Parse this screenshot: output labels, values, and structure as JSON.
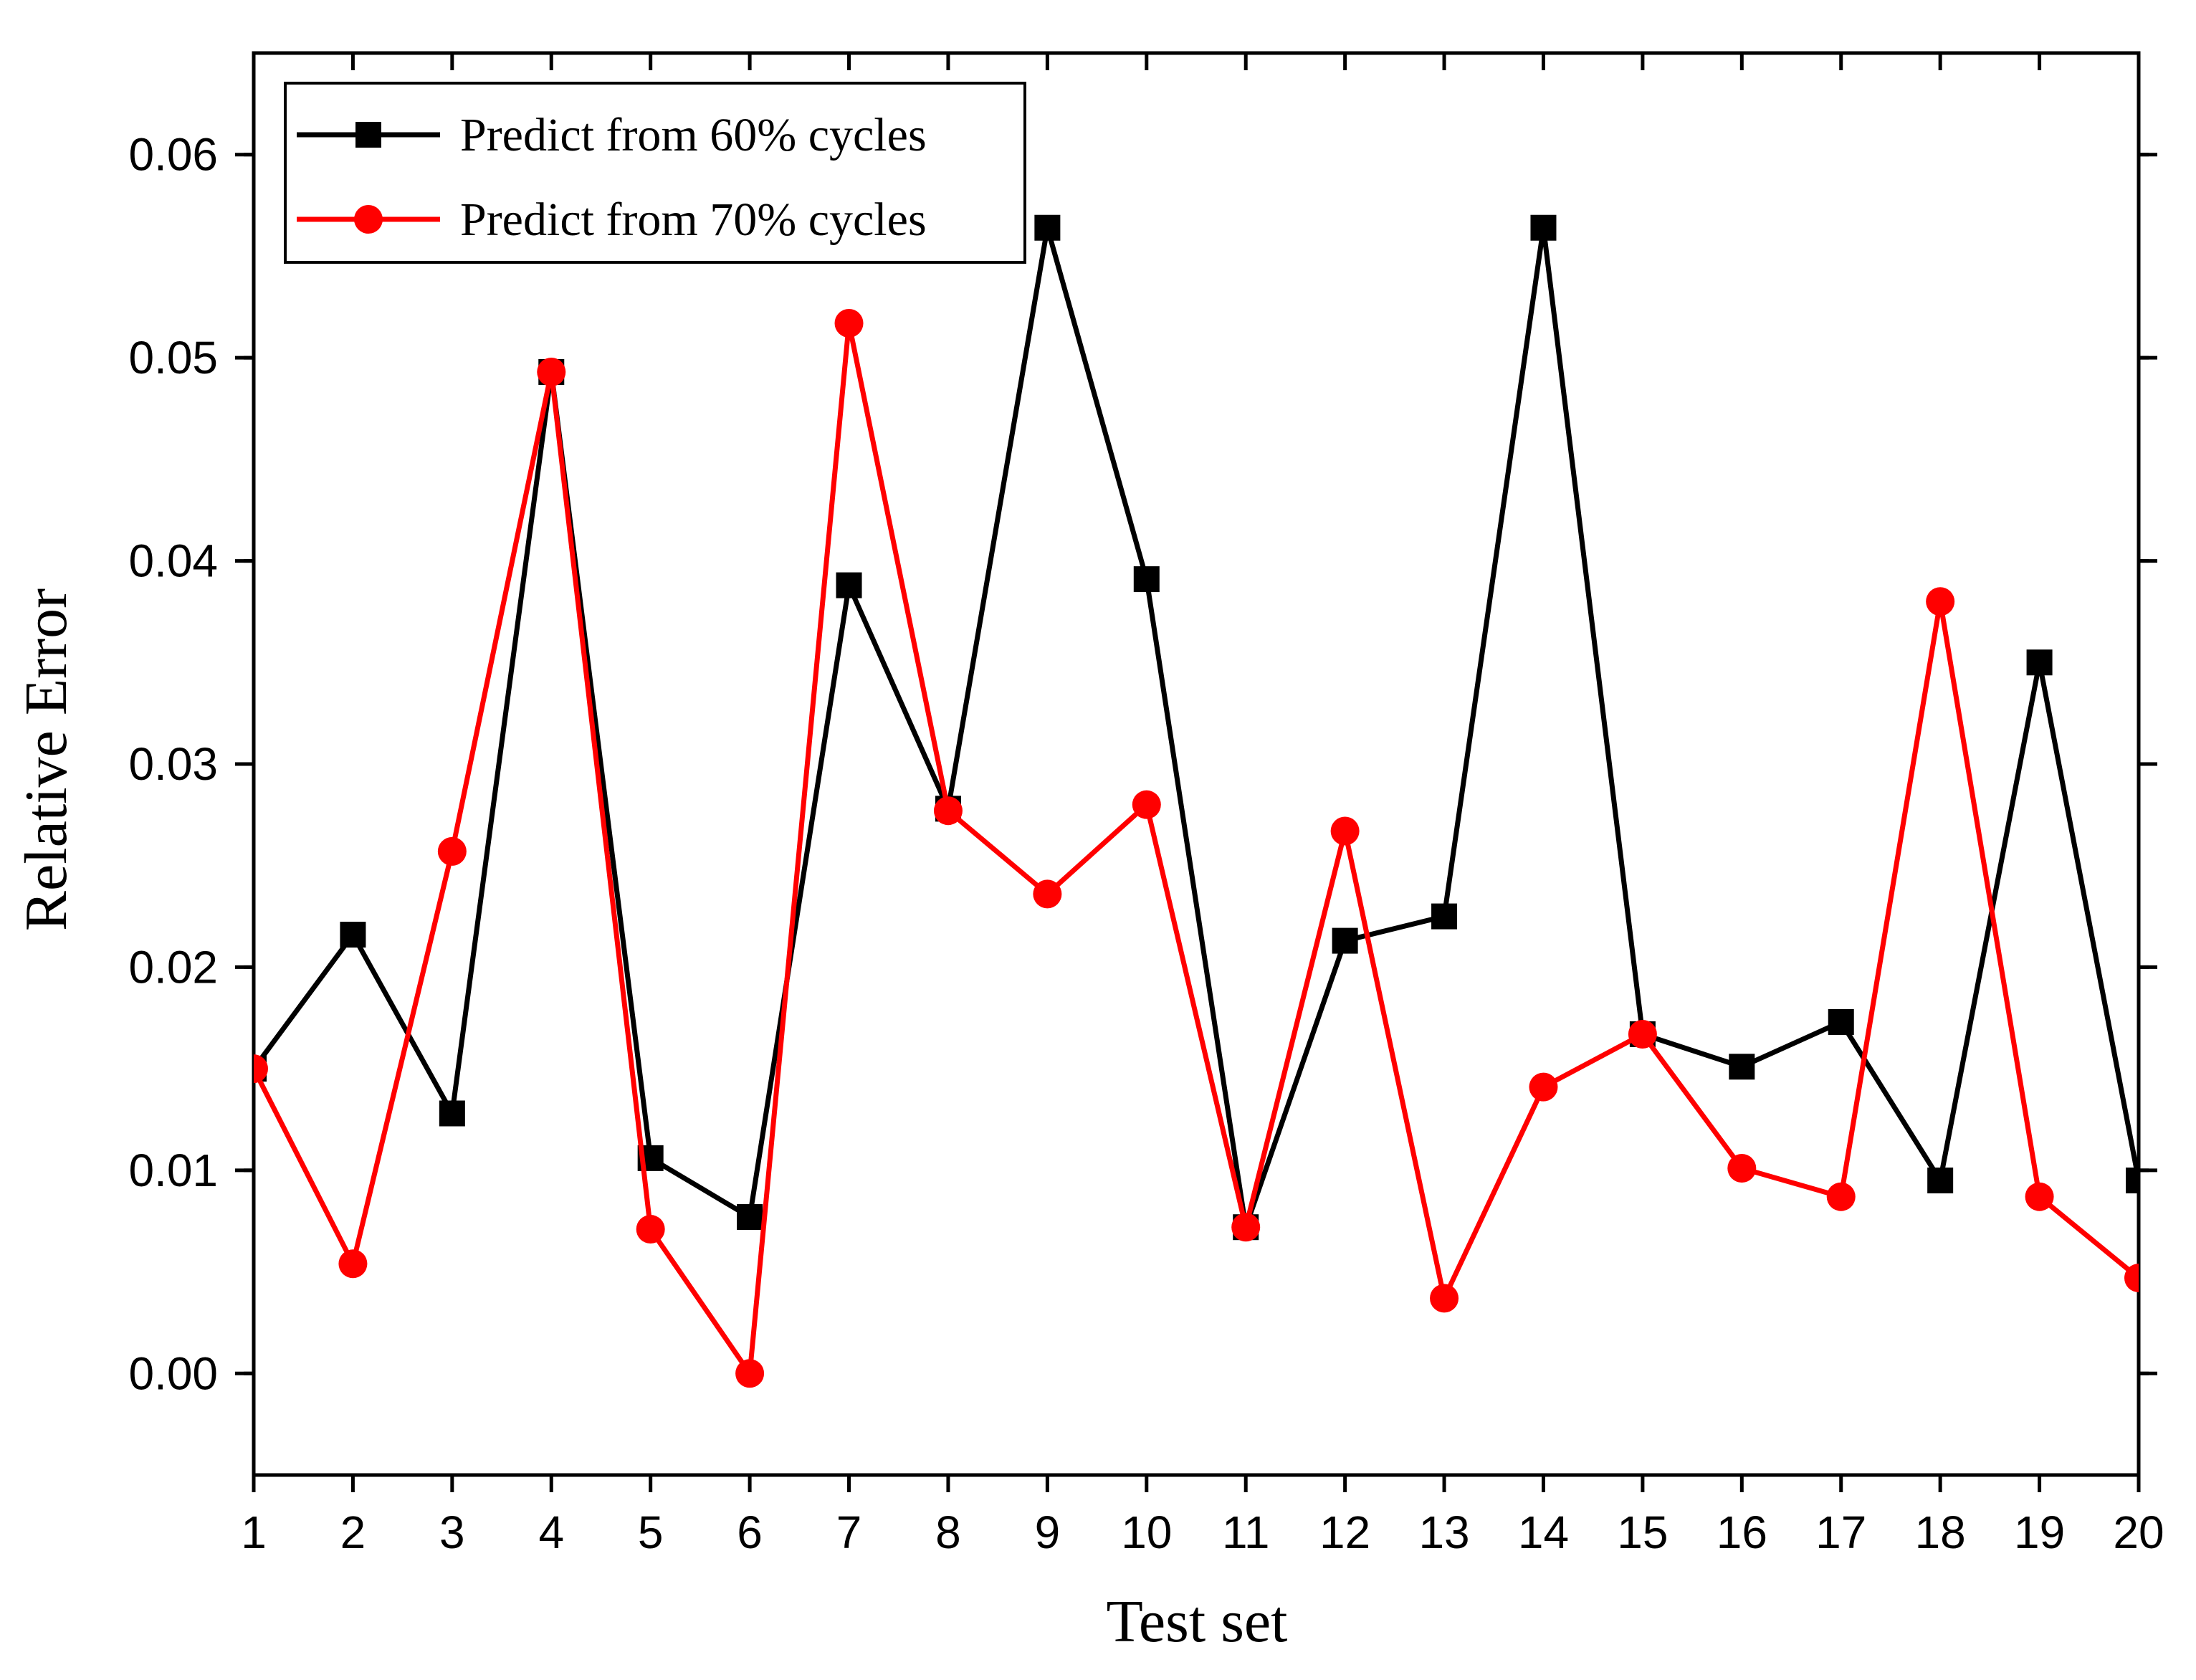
{
  "chart_data": {
    "type": "line",
    "title": "",
    "xlabel": "Test set",
    "ylabel": "Relative Error",
    "x": [
      1,
      2,
      3,
      4,
      5,
      6,
      7,
      8,
      9,
      10,
      11,
      12,
      13,
      14,
      15,
      16,
      17,
      18,
      19,
      20
    ],
    "x_tick_labels": [
      "1",
      "2",
      "3",
      "4",
      "5",
      "6",
      "7",
      "8",
      "9",
      "10",
      "11",
      "12",
      "13",
      "14",
      "15",
      "16",
      "17",
      "18",
      "19",
      "20"
    ],
    "xlim": [
      1,
      20
    ],
    "ylim": [
      -0.005,
      0.065
    ],
    "y_ticks": [
      0.0,
      0.01,
      0.02,
      0.03,
      0.04,
      0.05,
      0.06
    ],
    "y_tick_labels": [
      "0.00",
      "0.01",
      "0.02",
      "0.03",
      "0.04",
      "0.05",
      "0.06"
    ],
    "grid": false,
    "legend_position": "top-left",
    "series": [
      {
        "name": "Predict from 60% cycles",
        "color": "#000000",
        "marker": "square",
        "values": [
          0.015,
          0.0216,
          0.0128,
          0.0493,
          0.0106,
          0.0077,
          0.0388,
          0.0278,
          0.0564,
          0.0391,
          0.0072,
          0.0213,
          0.0225,
          0.0564,
          0.0167,
          0.0151,
          0.0173,
          0.0095,
          0.035,
          0.0095
        ]
      },
      {
        "name": "Predict from 70% cycles",
        "color": "#ff0000",
        "marker": "circle",
        "values": [
          0.015,
          0.0054,
          0.0257,
          0.0493,
          0.0071,
          0.0,
          0.0517,
          0.0277,
          0.0236,
          0.028,
          0.0072,
          0.0267,
          0.0037,
          0.0141,
          0.0167,
          0.0101,
          0.0087,
          0.038,
          0.0087,
          0.0047
        ]
      }
    ]
  }
}
